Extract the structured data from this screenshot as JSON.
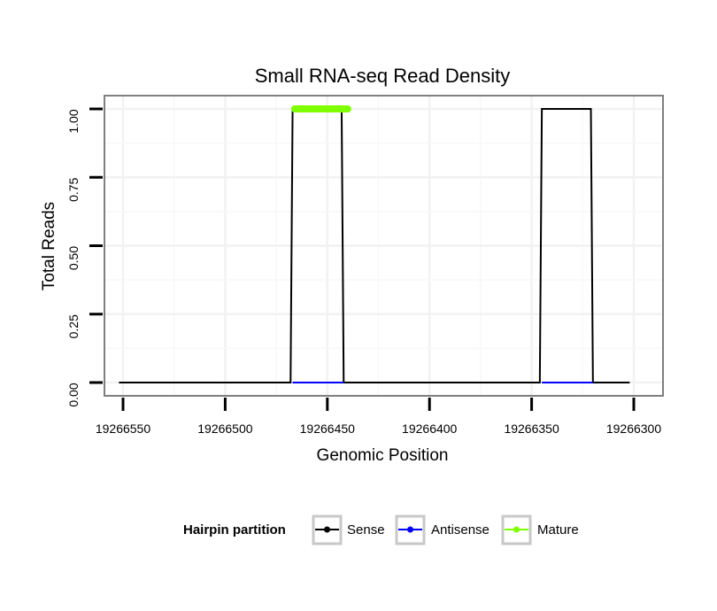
{
  "chart_data": {
    "type": "line",
    "title": "Small RNA-seq Read Density",
    "xlabel": "Genomic Position",
    "ylabel": "Total Reads",
    "xlim": [
      19266552,
      19266302
    ],
    "ylim": [
      0,
      1
    ],
    "x_reversed": true,
    "x_ticks": [
      19266550,
      19266500,
      19266450,
      19266400,
      19266350,
      19266300
    ],
    "x_tick_labels": [
      "19266550",
      "19266500",
      "19266450",
      "19266400",
      "19266350",
      "19266300"
    ],
    "y_ticks": [
      0,
      0.25,
      0.5,
      0.75,
      1
    ],
    "y_tick_labels": [
      "0.00",
      "0.25",
      "0.50",
      "0.75",
      "1.00"
    ],
    "grid": true,
    "legend": {
      "title": "Hairpin partition",
      "position": "bottom",
      "entries": [
        {
          "name": "Sense",
          "color": "#000000"
        },
        {
          "name": "Antisense",
          "color": "#0000ff"
        },
        {
          "name": "Mature",
          "color": "#7fff00"
        }
      ]
    },
    "series": [
      {
        "name": "Sense",
        "color": "#000000",
        "points": [
          [
            19266552,
            0
          ],
          [
            19266468,
            0
          ],
          [
            19266467,
            1
          ],
          [
            19266443,
            1
          ],
          [
            19266442,
            0
          ],
          [
            19266346,
            0
          ],
          [
            19266345,
            1
          ],
          [
            19266321,
            1
          ],
          [
            19266320,
            0
          ],
          [
            19266302,
            0
          ]
        ]
      },
      {
        "name": "Antisense",
        "color": "#0000ff",
        "points": [
          [
            19266467,
            0
          ],
          [
            19266442,
            0
          ],
          [
            19266345,
            0
          ],
          [
            19266320,
            0
          ]
        ],
        "segments": [
          [
            0,
            1
          ],
          [
            2,
            3
          ]
        ]
      },
      {
        "name": "Mature",
        "color": "#7fff00",
        "points": [
          [
            19266466,
            1
          ],
          [
            19266440,
            1
          ]
        ]
      }
    ]
  }
}
